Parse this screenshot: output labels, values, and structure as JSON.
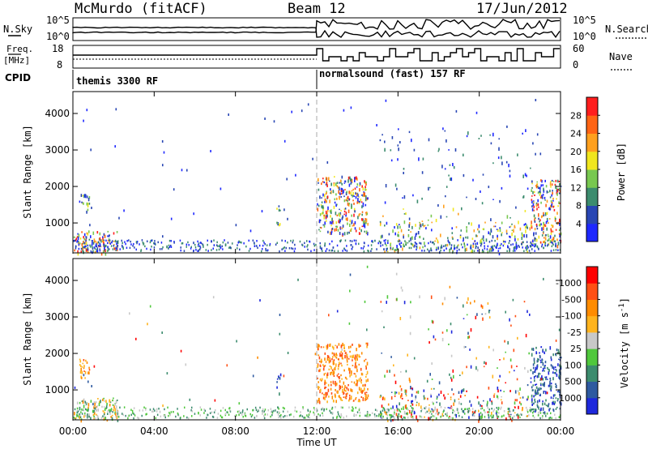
{
  "header": {
    "station": "McMurdo (fitACF)",
    "beam": "Beam 12",
    "date": "17/Jun/2012"
  },
  "top_panels": {
    "nsky_label": "N.Sky",
    "nsky_ticks": [
      "10^5",
      "10^0"
    ],
    "nsearch_label": "N.Search",
    "nsearch_ticks": [
      "10^5",
      "10^0"
    ],
    "freq_label": "Freq.",
    "freq_unit": "[MHz]",
    "freq_ticks": [
      "18",
      "8"
    ],
    "nave_label": "Nave",
    "nave_ticks": [
      "60",
      "0"
    ],
    "cpid_label": "CPID",
    "cpid_segments": [
      {
        "label": "themis 3300 RF",
        "start_hour": 0,
        "end_hour": 12
      },
      {
        "label": "normalsound (fast) 157 RF",
        "start_hour": 12,
        "end_hour": 24
      }
    ]
  },
  "chart_data": [
    {
      "type": "heatmap",
      "title": "",
      "xlabel": "Time UT",
      "ylabel": "Slant Range [km]",
      "x_ticks": [
        "00:00",
        "04:00",
        "08:00",
        "12:00",
        "16:00",
        "20:00",
        "00:00"
      ],
      "xlim_hours": [
        0,
        24
      ],
      "y_ticks": [
        1000,
        2000,
        3000,
        4000
      ],
      "ylim_km": [
        180,
        4600
      ],
      "colorbar": {
        "label": "Power [dB]",
        "ticks": [
          "4",
          "8",
          "12",
          "16",
          "20",
          "24",
          "28"
        ],
        "colors": [
          "#1e28ff",
          "#2846b4",
          "#3c8c6e",
          "#78c850",
          "#f0e61e",
          "#ffa01e",
          "#ff6414",
          "#ff1e1e"
        ]
      },
      "echo_regions": [
        {
          "t0": 0.0,
          "t1": 2.2,
          "r0": 180,
          "r1": 800,
          "intensity": "high"
        },
        {
          "t0": 0.3,
          "t1": 0.8,
          "r0": 1300,
          "r1": 1800,
          "intensity": "medium"
        },
        {
          "t0": 10.0,
          "t1": 10.2,
          "r0": 900,
          "r1": 1500,
          "intensity": "medium"
        },
        {
          "t0": 12.0,
          "t1": 14.5,
          "r0": 700,
          "r1": 2300,
          "intensity": "high"
        },
        {
          "t0": 15.0,
          "t1": 22.5,
          "r0": 180,
          "r1": 3600,
          "intensity": "scattered"
        },
        {
          "t0": 22.5,
          "t1": 24.0,
          "r0": 400,
          "r1": 2200,
          "intensity": "high"
        }
      ]
    },
    {
      "type": "heatmap",
      "title": "",
      "xlabel": "Time UT",
      "ylabel": "Slant Range [km]",
      "x_ticks": [
        "00:00",
        "04:00",
        "08:00",
        "12:00",
        "16:00",
        "20:00",
        "00:00"
      ],
      "xlim_hours": [
        0,
        24
      ],
      "y_ticks": [
        1000,
        2000,
        3000,
        4000
      ],
      "ylim_km": [
        180,
        4600
      ],
      "colorbar": {
        "label": "Velocity [m s^-1]",
        "label_main": "Velocity [m s",
        "label_sup": "-1",
        "label_end": "]",
        "ticks": [
          "1000",
          "500",
          "100",
          "25",
          "-25",
          "-100",
          "-500",
          "-1000"
        ],
        "colors": [
          "#1e28dc",
          "#2e5aa0",
          "#3c8c6e",
          "#50c83c",
          "#c8c8c8",
          "#ffb41e",
          "#ff8c00",
          "#ff5014",
          "#ff0000"
        ]
      },
      "echo_regions": [
        {
          "t0": 0.0,
          "t1": 2.2,
          "r0": 180,
          "r1": 800,
          "intensity": "mixed"
        },
        {
          "t0": 0.3,
          "t1": 0.8,
          "r0": 1300,
          "r1": 1900,
          "intensity": "receding"
        },
        {
          "t0": 10.0,
          "t1": 10.2,
          "r0": 900,
          "r1": 1500,
          "intensity": "approaching"
        },
        {
          "t0": 12.0,
          "t1": 14.5,
          "r0": 700,
          "r1": 2300,
          "intensity": "receding"
        },
        {
          "t0": 15.0,
          "t1": 22.5,
          "r0": 180,
          "r1": 3600,
          "intensity": "scattered"
        },
        {
          "t0": 22.5,
          "t1": 24.0,
          "r0": 400,
          "r1": 2200,
          "intensity": "approaching"
        }
      ]
    }
  ]
}
